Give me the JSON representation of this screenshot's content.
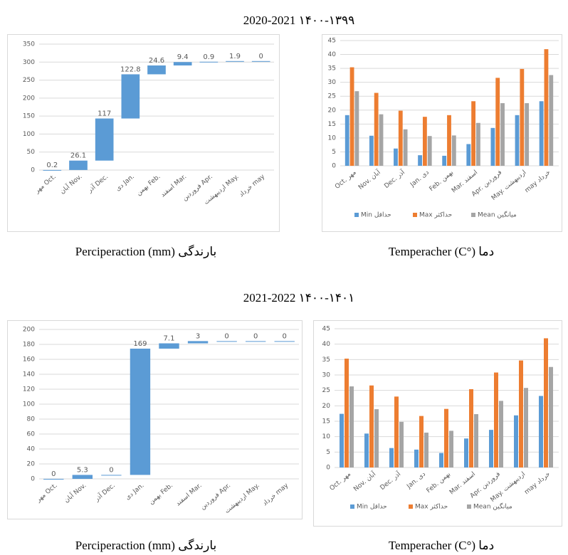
{
  "headings": [
    "2020-2021   ۱۴۰۰-۱۳۹۹",
    "2021-2022   ۱۴۰۰-۱۴۰۱"
  ],
  "chart_data": [
    {
      "type": "waterfall",
      "caption": "Perciperaction (mm)   بارندگی",
      "color": "#5b9bd5",
      "grid": true,
      "categories": [
        "مهر Oct.",
        "آبان Nov.",
        "آذر Dec.",
        "دی Jan.",
        "بهمن Feb.",
        "اسفند Mar.",
        "فروردین Apr.",
        "اردیبهشت May.",
        "خرداد may"
      ],
      "values": [
        0.2,
        26.1,
        117,
        122.8,
        24.6,
        9.4,
        0.9,
        1.9,
        0
      ],
      "ylim": [
        0,
        350
      ],
      "yticks": [
        0,
        50,
        100,
        150,
        200,
        250,
        300,
        350
      ]
    },
    {
      "type": "grouped_bar",
      "caption": "Temperacher (C°)   دما",
      "grid": true,
      "categories": [
        "Oct. مهر",
        "Nov. آبان",
        "Dec. آذر",
        "Jan. دی",
        "Feb. بهمن",
        "Mar. اسفند",
        "Apr. فروردین",
        "May. اردیبهشت",
        "may خرداد"
      ],
      "series": [
        {
          "name": "Min حداقل",
          "color": "#5b9bd5",
          "values": [
            18.2,
            10.8,
            6.2,
            3.8,
            3.6,
            7.8,
            13.6,
            18.2,
            23.2
          ]
        },
        {
          "name": "Max حداکثر",
          "color": "#ed7d31",
          "values": [
            35.4,
            26.2,
            19.8,
            17.6,
            18.2,
            23.2,
            31.6,
            34.8,
            41.9
          ]
        },
        {
          "name": "Mean میانگین",
          "color": "#a5a5a5",
          "values": [
            26.8,
            18.5,
            13.1,
            10.7,
            10.9,
            15.4,
            22.5,
            22.5,
            32.6
          ]
        }
      ],
      "ylim": [
        0,
        45
      ],
      "yticks": [
        0,
        5,
        10,
        15,
        20,
        25,
        30,
        35,
        40,
        45
      ]
    },
    {
      "type": "waterfall",
      "caption": "Perciperaction (mm)   بارندگی",
      "color": "#5b9bd5",
      "grid": true,
      "categories": [
        "مهر Oct.",
        "آبان Nov.",
        "آذر Dec.",
        "دی Jan.",
        "بهمن Feb.",
        "اسفند Mar.",
        "فروردین Apr.",
        "اردیبهشت May.",
        "خرداد may"
      ],
      "values": [
        0,
        5.3,
        0,
        169,
        7.1,
        3,
        0,
        0,
        0
      ],
      "ylim": [
        0,
        200
      ],
      "yticks": [
        0,
        20,
        40,
        60,
        80,
        100,
        120,
        140,
        160,
        180,
        200
      ]
    },
    {
      "type": "grouped_bar",
      "caption": "Temperacher (C°)   دما",
      "grid": true,
      "categories": [
        "Oct. مهر",
        "Nov. آبان",
        "Dec. آذر",
        "Jan. دی",
        "Feb. بهمن",
        "Mar. اسفند",
        "Apr. فروردین",
        "May. اردیبهشت",
        "may خرداد"
      ],
      "series": [
        {
          "name": "Min حداقل",
          "color": "#5b9bd5",
          "values": [
            17.4,
            11.0,
            6.3,
            5.8,
            4.7,
            9.4,
            12.2,
            16.9,
            23.2
          ]
        },
        {
          "name": "Max حداکثر",
          "color": "#ed7d31",
          "values": [
            35.3,
            26.6,
            23.0,
            16.7,
            19.0,
            25.4,
            30.8,
            34.7,
            41.9
          ]
        },
        {
          "name": "Mean میانگین",
          "color": "#a5a5a5",
          "values": [
            26.3,
            18.9,
            14.8,
            11.3,
            11.9,
            17.3,
            21.6,
            25.8,
            32.6
          ]
        }
      ],
      "ylim": [
        0,
        45
      ],
      "yticks": [
        0,
        5,
        10,
        15,
        20,
        25,
        30,
        35,
        40,
        45
      ]
    }
  ]
}
